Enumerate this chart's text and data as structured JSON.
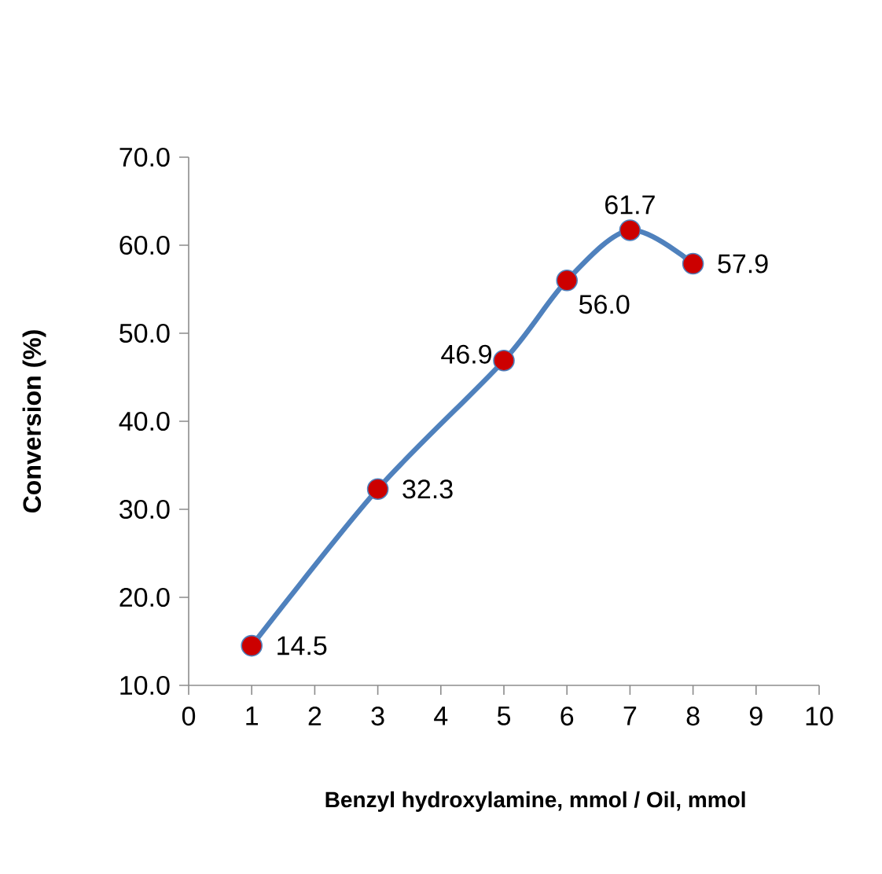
{
  "chart_data": {
    "type": "line",
    "xlabel": "Benzyl hydroxylamine, mmol / Oil, mmol",
    "ylabel": "Conversion (%)",
    "x": [
      1,
      3,
      5,
      6,
      7,
      8
    ],
    "series": [
      {
        "color": "#4f81bd",
        "values": [
          14.5,
          32.3,
          46.9,
          56.0,
          61.7,
          57.9
        ],
        "value_labels": [
          "14.5",
          "32.3",
          "46.9",
          "56.0",
          "61.7",
          "57.9"
        ]
      }
    ],
    "xlim": [
      0,
      10
    ],
    "xticks": [
      0,
      1,
      2,
      3,
      4,
      5,
      6,
      7,
      8,
      9,
      10
    ],
    "ylim": [
      10,
      70
    ],
    "yticks": [
      {
        "value": 10,
        "label": "10.0"
      },
      {
        "value": 20,
        "label": "20.0"
      },
      {
        "value": 30,
        "label": "30.0"
      },
      {
        "value": 40,
        "label": "40.0"
      },
      {
        "value": 50,
        "label": "50.0"
      },
      {
        "value": 60,
        "label": "60.0"
      },
      {
        "value": 70,
        "label": "70.0"
      }
    ],
    "marker": "circle",
    "line_style": "solid",
    "grid": false
  }
}
